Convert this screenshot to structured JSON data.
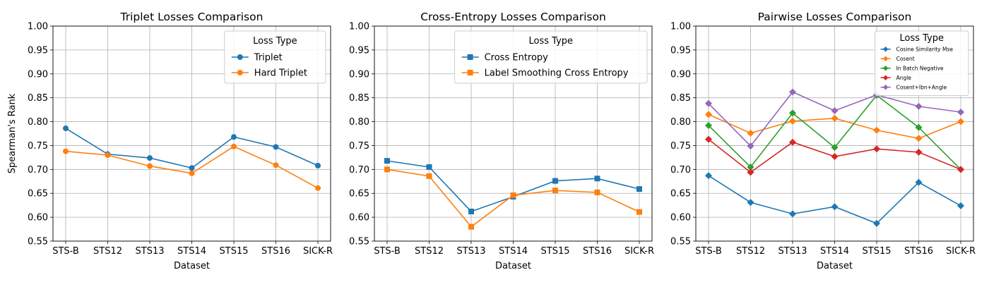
{
  "chart_data": [
    {
      "type": "line",
      "title": "Triplet Losses Comparison",
      "xlabel": "Dataset",
      "ylabel": "Spearman's Rank",
      "categories": [
        "STS-B",
        "STS12",
        "STS13",
        "STS14",
        "STS15",
        "STS16",
        "SICK-R"
      ],
      "ylim": [
        0.55,
        1.0
      ],
      "yticks": [
        "0.55",
        "0.60",
        "0.65",
        "0.70",
        "0.75",
        "0.80",
        "0.85",
        "0.90",
        "0.95",
        "1.00"
      ],
      "grid": true,
      "legend": {
        "title": "Loss Type",
        "placement": "top-right",
        "size": "normal"
      },
      "series": [
        {
          "name": "Triplet",
          "color": "#1f77b4",
          "marker": "circle",
          "values": [
            0.786,
            0.732,
            0.724,
            0.703,
            0.768,
            0.747,
            0.708
          ]
        },
        {
          "name": "Hard Triplet",
          "color": "#ff7f0e",
          "marker": "circle",
          "values": [
            0.738,
            0.73,
            0.707,
            0.692,
            0.748,
            0.709,
            0.661
          ]
        }
      ]
    },
    {
      "type": "line",
      "title": "Cross-Entropy Losses Comparison",
      "xlabel": "Dataset",
      "ylabel": "",
      "categories": [
        "STS-B",
        "STS12",
        "STS13",
        "STS14",
        "STS15",
        "STS16",
        "SICK-R"
      ],
      "ylim": [
        0.55,
        1.0
      ],
      "yticks": [
        "0.55",
        "0.60",
        "0.65",
        "0.70",
        "0.75",
        "0.80",
        "0.85",
        "0.90",
        "0.95",
        "1.00"
      ],
      "grid": true,
      "legend": {
        "title": "Loss Type",
        "placement": "top-right",
        "size": "normal"
      },
      "series": [
        {
          "name": "Cross Entropy",
          "color": "#1f77b4",
          "marker": "square",
          "values": [
            0.718,
            0.705,
            0.612,
            0.643,
            0.676,
            0.681,
            0.659
          ]
        },
        {
          "name": "Label Smoothing Cross Entropy",
          "color": "#ff7f0e",
          "marker": "square",
          "values": [
            0.7,
            0.686,
            0.58,
            0.646,
            0.656,
            0.652,
            0.611
          ]
        }
      ]
    },
    {
      "type": "line",
      "title": "Pairwise Losses Comparison",
      "xlabel": "Dataset",
      "ylabel": "",
      "categories": [
        "STS-B",
        "STS12",
        "STS13",
        "STS14",
        "STS15",
        "STS16",
        "SICK-R"
      ],
      "ylim": [
        0.55,
        1.0
      ],
      "yticks": [
        "0.55",
        "0.60",
        "0.65",
        "0.70",
        "0.75",
        "0.80",
        "0.85",
        "0.90",
        "0.95",
        "1.00"
      ],
      "grid": true,
      "legend": {
        "title": "Loss Type",
        "placement": "top-right",
        "size": "small"
      },
      "series": [
        {
          "name": "Cosine Similarity Mse",
          "color": "#1f77b4",
          "marker": "diamond",
          "values": [
            0.687,
            0.631,
            0.607,
            0.622,
            0.587,
            0.673,
            0.624
          ]
        },
        {
          "name": "Cosent",
          "color": "#ff7f0e",
          "marker": "diamond",
          "values": [
            0.815,
            0.776,
            0.801,
            0.807,
            0.782,
            0.765,
            0.8
          ]
        },
        {
          "name": "In Batch Negative",
          "color": "#2ca02c",
          "marker": "diamond",
          "values": [
            0.792,
            0.705,
            0.818,
            0.746,
            0.855,
            0.788,
            0.7
          ]
        },
        {
          "name": "Angle",
          "color": "#d62728",
          "marker": "diamond",
          "values": [
            0.763,
            0.694,
            0.757,
            0.727,
            0.743,
            0.736,
            0.7
          ]
        },
        {
          "name": "Cosent+Ibn+Angle",
          "color": "#9467bd",
          "marker": "diamond",
          "values": [
            0.838,
            0.749,
            0.862,
            0.823,
            0.856,
            0.832,
            0.82
          ]
        }
      ]
    }
  ]
}
